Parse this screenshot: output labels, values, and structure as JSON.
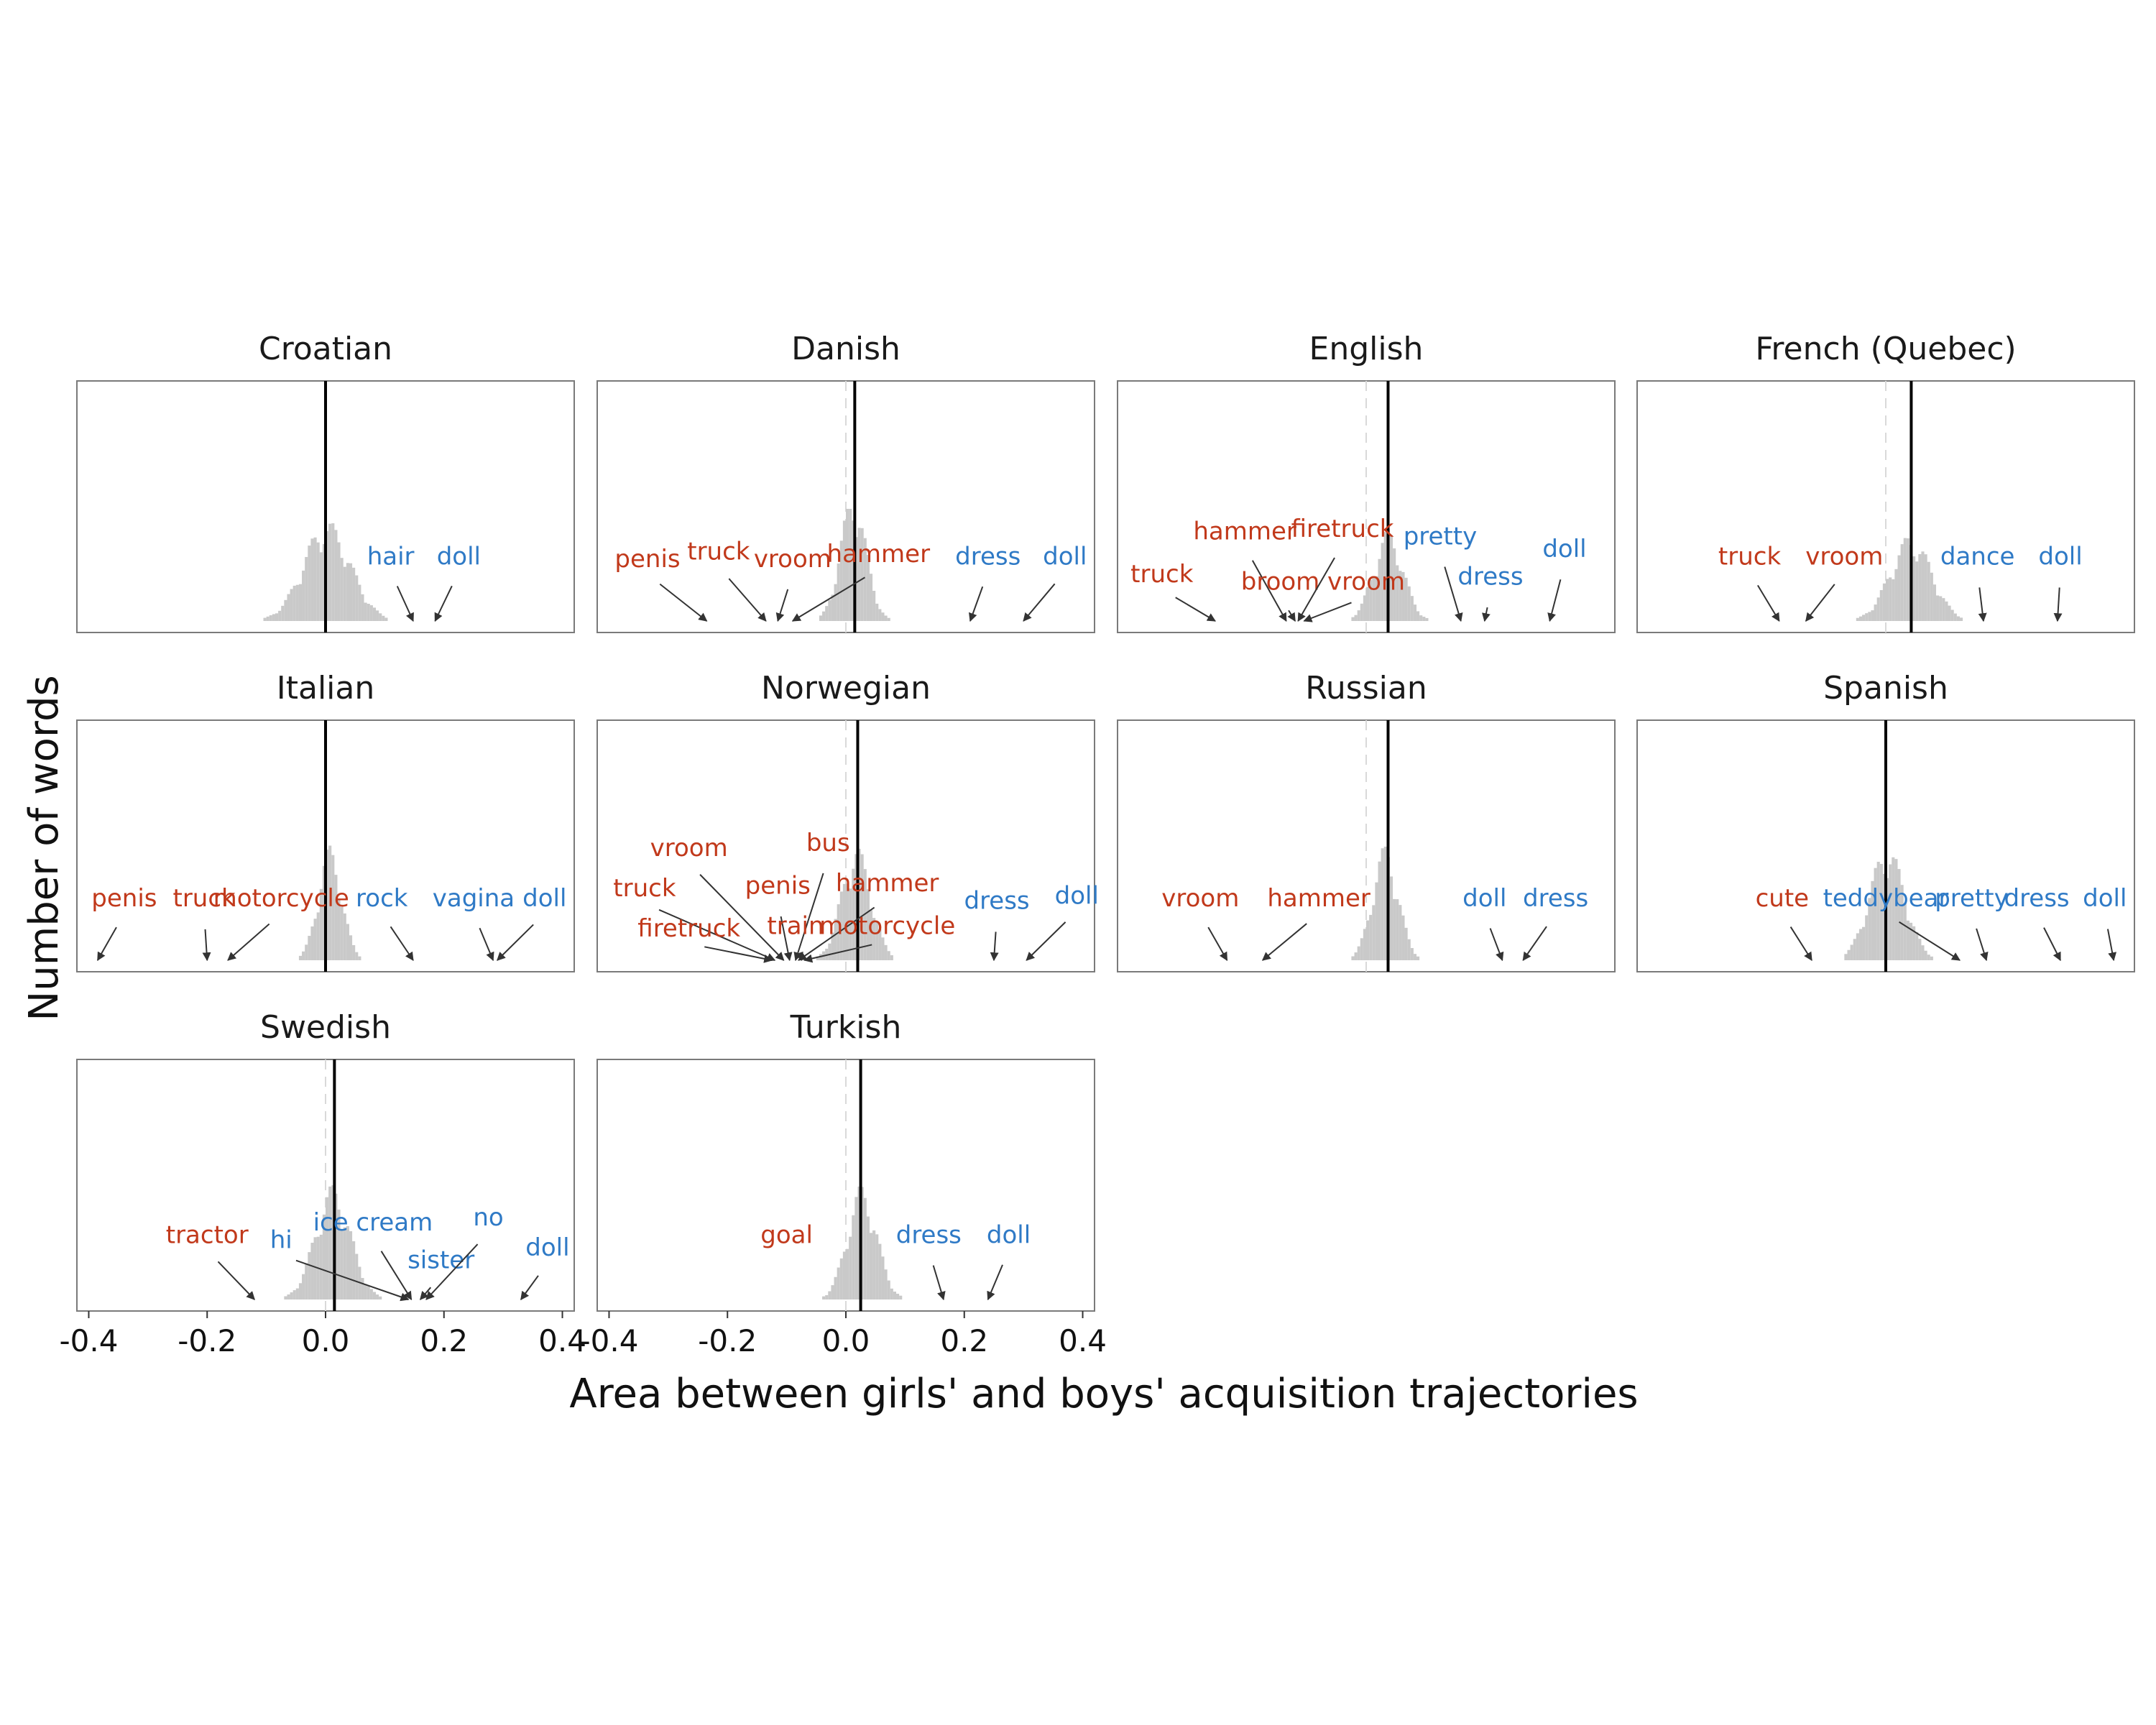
{
  "chart_data": {
    "type": "histogram-facets",
    "xlabel": "Area between girls' and boys' acquisition trajectories",
    "ylabel": "Number of words",
    "xlim": [
      -0.42,
      0.42
    ],
    "xticks": [
      -0.4,
      -0.2,
      0.0,
      0.2,
      0.4
    ],
    "xtick_labels": [
      "-0.4",
      "-0.2",
      "0.0",
      "0.2",
      "0.4"
    ],
    "reference_line": 0.0,
    "colors": {
      "boy_words": "#c1391b",
      "girl_words": "#2f7ac6",
      "histogram": "#c9c9c9",
      "mean_line": "#000000",
      "zero_line": "#d9d9d9"
    },
    "panels": [
      {
        "language": "Croatian",
        "mean": 0.0,
        "hist": {
          "start": -0.12,
          "end": 0.16,
          "center": 0.0,
          "spread": 0.04,
          "peak": 0.35
        },
        "words": [
          {
            "word": "hair",
            "x": 0.148,
            "side": "girl",
            "label_x": 0.11,
            "label_y": 0.27
          },
          {
            "word": "doll",
            "x": 0.185,
            "side": "girl",
            "label_x": 0.225,
            "label_y": 0.27
          }
        ]
      },
      {
        "language": "Danish",
        "mean": 0.015,
        "hist": {
          "start": -0.08,
          "end": 0.12,
          "center": 0.01,
          "spread": 0.022,
          "peak": 0.44
        },
        "words": [
          {
            "word": "penis",
            "x": -0.235,
            "side": "boy",
            "label_x": -0.335,
            "label_y": 0.26
          },
          {
            "word": "truck",
            "x": -0.135,
            "side": "boy",
            "label_x": -0.215,
            "label_y": 0.29
          },
          {
            "word": "vroom",
            "x": -0.115,
            "side": "boy",
            "label_x": -0.09,
            "label_y": 0.26
          },
          {
            "word": "hammer",
            "x": -0.09,
            "side": "boy",
            "label_x": 0.055,
            "label_y": 0.28
          },
          {
            "word": "dress",
            "x": 0.21,
            "side": "girl",
            "label_x": 0.24,
            "label_y": 0.27
          },
          {
            "word": "doll",
            "x": 0.3,
            "side": "girl",
            "label_x": 0.37,
            "label_y": 0.27
          }
        ]
      },
      {
        "language": "English",
        "mean": 0.037,
        "hist": {
          "start": -0.1,
          "end": 0.12,
          "center": 0.035,
          "spread": 0.025,
          "peak": 0.32
        },
        "words": [
          {
            "word": "truck",
            "x": -0.255,
            "side": "boy",
            "label_x": -0.345,
            "label_y": 0.2
          },
          {
            "word": "hammer",
            "x": -0.135,
            "side": "boy",
            "label_x": -0.205,
            "label_y": 0.37
          },
          {
            "word": "broom",
            "x": -0.12,
            "side": "boy",
            "label_x": -0.145,
            "label_y": 0.17
          },
          {
            "word": "firetruck",
            "x": -0.115,
            "side": "boy",
            "label_x": -0.04,
            "label_y": 0.38
          },
          {
            "word": "vroom",
            "x": -0.105,
            "side": "boy",
            "label_x": 0.0,
            "label_y": 0.17
          },
          {
            "word": "pretty",
            "x": 0.16,
            "side": "girl",
            "label_x": 0.125,
            "label_y": 0.35
          },
          {
            "word": "dress",
            "x": 0.2,
            "side": "girl",
            "label_x": 0.21,
            "label_y": 0.19
          },
          {
            "word": "doll",
            "x": 0.31,
            "side": "girl",
            "label_x": 0.335,
            "label_y": 0.3
          }
        ]
      },
      {
        "language": "French (Quebec)",
        "mean": 0.043,
        "hist": {
          "start": -0.05,
          "end": 0.17,
          "center": 0.04,
          "spread": 0.035,
          "peak": 0.3
        },
        "words": [
          {
            "word": "truck",
            "x": -0.18,
            "side": "boy",
            "label_x": -0.23,
            "label_y": 0.27
          },
          {
            "word": "vroom",
            "x": -0.135,
            "side": "boy",
            "label_x": -0.07,
            "label_y": 0.27
          },
          {
            "word": "dance",
            "x": 0.165,
            "side": "girl",
            "label_x": 0.155,
            "label_y": 0.27
          },
          {
            "word": "doll",
            "x": 0.29,
            "side": "girl",
            "label_x": 0.295,
            "label_y": 0.27
          }
        ]
      },
      {
        "language": "Italian",
        "mean": 0.0,
        "hist": {
          "start": -0.06,
          "end": 0.08,
          "center": 0.005,
          "spread": 0.02,
          "peak": 0.4
        },
        "words": [
          {
            "word": "penis",
            "x": -0.385,
            "side": "boy",
            "label_x": -0.34,
            "label_y": 0.26
          },
          {
            "word": "truck",
            "x": -0.2,
            "side": "boy",
            "label_x": -0.205,
            "label_y": 0.26
          },
          {
            "word": "motorcycle",
            "x": -0.165,
            "side": "boy",
            "label_x": -0.075,
            "label_y": 0.26
          },
          {
            "word": "rock",
            "x": 0.148,
            "side": "girl",
            "label_x": 0.095,
            "label_y": 0.26
          },
          {
            "word": "vagina",
            "x": 0.283,
            "side": "girl",
            "label_x": 0.25,
            "label_y": 0.26
          },
          {
            "word": "doll",
            "x": 0.29,
            "side": "girl",
            "label_x": 0.37,
            "label_y": 0.26
          }
        ]
      },
      {
        "language": "Norwegian",
        "mean": 0.02,
        "hist": {
          "start": -0.06,
          "end": 0.11,
          "center": 0.015,
          "spread": 0.025,
          "peak": 0.4
        },
        "words": [
          {
            "word": "truck",
            "x": -0.12,
            "side": "boy",
            "label_x": -0.34,
            "label_y": 0.3
          },
          {
            "word": "vroom",
            "x": -0.105,
            "side": "boy",
            "label_x": -0.265,
            "label_y": 0.46
          },
          {
            "word": "firetruck",
            "x": -0.125,
            "side": "boy",
            "label_x": -0.265,
            "label_y": 0.14
          },
          {
            "word": "penis",
            "x": -0.095,
            "side": "boy",
            "label_x": -0.115,
            "label_y": 0.31
          },
          {
            "word": "bus",
            "x": -0.085,
            "side": "boy",
            "label_x": -0.03,
            "label_y": 0.48
          },
          {
            "word": "train",
            "x": -0.075,
            "side": "boy",
            "label_x": -0.085,
            "label_y": 0.15
          },
          {
            "word": "hammer",
            "x": -0.08,
            "side": "boy",
            "label_x": 0.07,
            "label_y": 0.32
          },
          {
            "word": "motorcycle",
            "x": -0.07,
            "side": "boy",
            "label_x": 0.07,
            "label_y": 0.15
          },
          {
            "word": "dress",
            "x": 0.25,
            "side": "girl",
            "label_x": 0.255,
            "label_y": 0.25
          },
          {
            "word": "doll",
            "x": 0.305,
            "side": "girl",
            "label_x": 0.39,
            "label_y": 0.27
          }
        ]
      },
      {
        "language": "Russian",
        "mean": 0.037,
        "hist": {
          "start": -0.04,
          "end": 0.09,
          "center": 0.03,
          "spread": 0.022,
          "peak": 0.4
        },
        "words": [
          {
            "word": "vroom",
            "x": -0.235,
            "side": "boy",
            "label_x": -0.28,
            "label_y": 0.26
          },
          {
            "word": "hammer",
            "x": -0.175,
            "side": "boy",
            "label_x": -0.08,
            "label_y": 0.26
          },
          {
            "word": "doll",
            "x": 0.23,
            "side": "girl",
            "label_x": 0.2,
            "label_y": 0.26
          },
          {
            "word": "dress",
            "x": 0.265,
            "side": "girl",
            "label_x": 0.32,
            "label_y": 0.26
          }
        ]
      },
      {
        "language": "Spanish",
        "mean": 0.0,
        "hist": {
          "start": -0.07,
          "end": 0.12,
          "center": 0.0,
          "spread": 0.03,
          "peak": 0.4
        },
        "words": [
          {
            "word": "cute",
            "x": -0.125,
            "side": "boy",
            "label_x": -0.175,
            "label_y": 0.26
          },
          {
            "word": "teddybear",
            "x": 0.125,
            "side": "girl",
            "label_x": 0.0,
            "label_y": 0.26
          },
          {
            "word": "pretty",
            "x": 0.17,
            "side": "girl",
            "label_x": 0.145,
            "label_y": 0.26
          },
          {
            "word": "dress",
            "x": 0.295,
            "side": "girl",
            "label_x": 0.255,
            "label_y": 0.26
          },
          {
            "word": "doll",
            "x": 0.385,
            "side": "girl",
            "label_x": 0.37,
            "label_y": 0.26
          }
        ]
      },
      {
        "language": "Swedish",
        "mean": 0.015,
        "hist": {
          "start": -0.1,
          "end": 0.16,
          "center": 0.01,
          "spread": 0.03,
          "peak": 0.4
        },
        "words": [
          {
            "word": "tractor",
            "x": -0.12,
            "side": "boy",
            "label_x": -0.2,
            "label_y": 0.27
          },
          {
            "word": "hi",
            "x": 0.14,
            "side": "girl",
            "label_x": -0.075,
            "label_y": 0.25
          },
          {
            "word": "ice cream",
            "x": 0.145,
            "side": "girl",
            "label_x": 0.08,
            "label_y": 0.32
          },
          {
            "word": "sister",
            "x": 0.16,
            "side": "girl",
            "label_x": 0.195,
            "label_y": 0.17
          },
          {
            "word": "no",
            "x": 0.17,
            "side": "girl",
            "label_x": 0.275,
            "label_y": 0.34
          },
          {
            "word": "doll",
            "x": 0.33,
            "side": "girl",
            "label_x": 0.375,
            "label_y": 0.22
          }
        ]
      },
      {
        "language": "Turkish",
        "mean": 0.025,
        "hist": {
          "start": -0.07,
          "end": 0.12,
          "center": 0.025,
          "spread": 0.025,
          "peak": 0.4
        },
        "words": [
          {
            "word": "goal",
            "x": null,
            "side": "boy",
            "label_x": -0.1,
            "label_y": 0.27
          },
          {
            "word": "dress",
            "x": 0.165,
            "side": "girl",
            "label_x": 0.14,
            "label_y": 0.27
          },
          {
            "word": "doll",
            "x": 0.24,
            "side": "girl",
            "label_x": 0.275,
            "label_y": 0.27
          }
        ]
      }
    ]
  }
}
